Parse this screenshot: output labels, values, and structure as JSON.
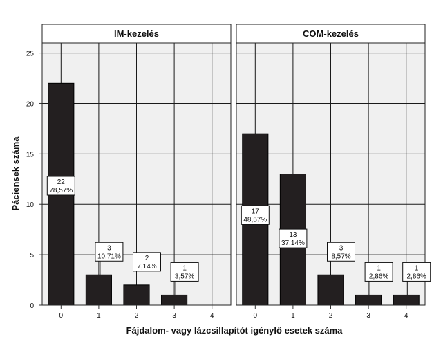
{
  "chart_data": {
    "type": "bar",
    "ylabel": "Páciensek száma",
    "xlabel": "Fájdalom- vagy lázcsillapítót igénylő esetek száma",
    "ylim": [
      0,
      26
    ],
    "yticks": [
      0,
      5,
      10,
      15,
      20,
      25
    ],
    "categories": [
      "0",
      "1",
      "2",
      "3",
      "4"
    ],
    "colors": {
      "bar": "#231f20",
      "panel_bg": "#f0f0f0",
      "grid": "#1a1a1a",
      "header_bg": "#ffffff"
    },
    "panels": [
      {
        "title": "IM-kezelés",
        "values": [
          22,
          3,
          2,
          1,
          0
        ],
        "labels": [
          {
            "count": "22",
            "pct": "78,57%"
          },
          {
            "count": "3",
            "pct": "10,71%"
          },
          {
            "count": "2",
            "pct": "7,14%"
          },
          {
            "count": "1",
            "pct": "3,57%"
          },
          null
        ]
      },
      {
        "title": "COM-kezelés",
        "values": [
          17,
          13,
          3,
          1,
          1
        ],
        "labels": [
          {
            "count": "17",
            "pct": "48,57%"
          },
          {
            "count": "13",
            "pct": "37,14%"
          },
          {
            "count": "3",
            "pct": "8,57%"
          },
          {
            "count": "1",
            "pct": "2,86%"
          },
          {
            "count": "1",
            "pct": "2,86%"
          }
        ]
      }
    ]
  }
}
